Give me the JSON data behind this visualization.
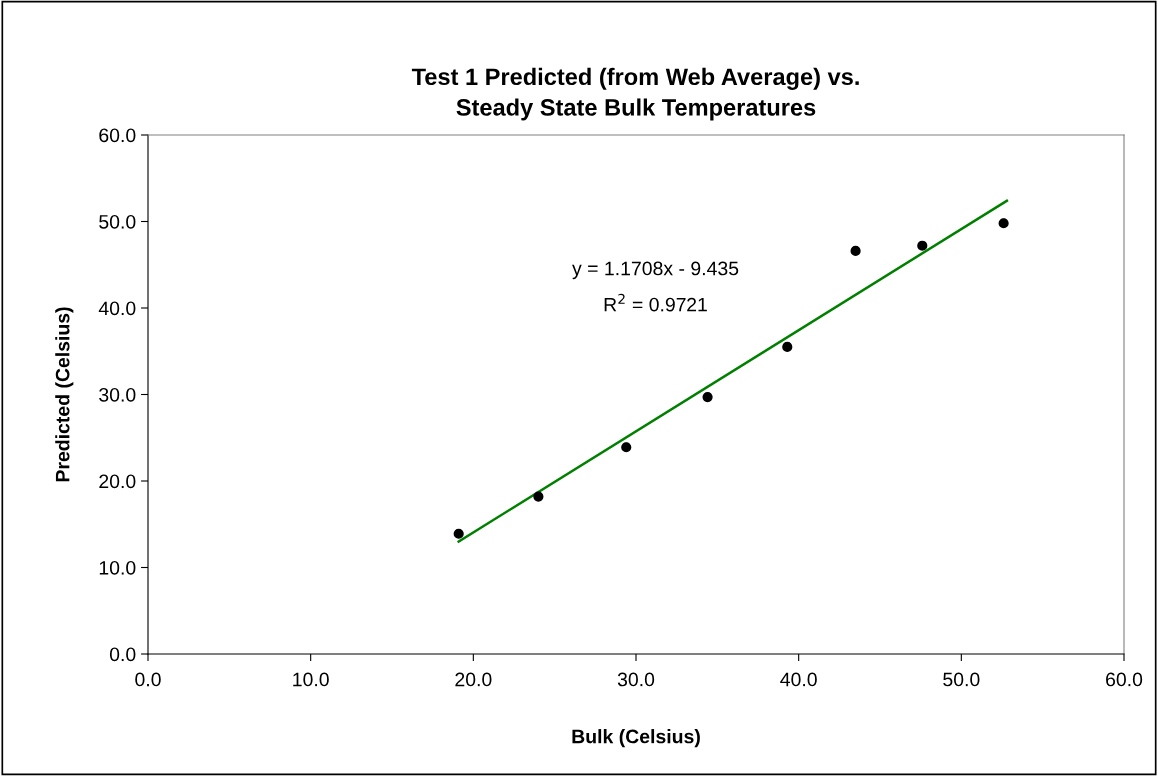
{
  "chart_data": {
    "type": "scatter",
    "title": "Test 1 Predicted (from Web Average) vs.\nSteady State Bulk Temperatures",
    "xlabel": "Bulk (Celsius)",
    "ylabel": "Predicted (Celsius)",
    "annotations": [
      "y = 1.1708x - 9.435",
      "R$^{2}$ = 0.9721"
    ],
    "series": [
      {
        "color": "#000000",
        "marker": "circle",
        "x": [
          19.1,
          24.0,
          29.4,
          34.4,
          39.3,
          43.5,
          47.6,
          52.6
        ],
        "values": [
          13.9,
          18.2,
          23.9,
          29.7,
          35.5,
          46.6,
          47.2,
          49.8
        ]
      },
      {
        "type": "line",
        "color": "#008000",
        "marker": "none",
        "line_style": "solid",
        "x": [
          19.1,
          52.8
        ],
        "values": [
          13.0,
          52.4
        ]
      }
    ],
    "xlim": [
      0,
      60
    ],
    "ylim": [
      0,
      60
    ],
    "xticks": [
      {
        "value": 0,
        "label": "0.0"
      },
      {
        "value": 10,
        "label": "10.0"
      },
      {
        "value": 20,
        "label": "20.0"
      },
      {
        "value": 30,
        "label": "30.0"
      },
      {
        "value": 40,
        "label": "40.0"
      },
      {
        "value": 50,
        "label": "50.0"
      },
      {
        "value": 60,
        "label": "60.0"
      }
    ],
    "yticks": [
      {
        "value": 0,
        "label": "0.0"
      },
      {
        "value": 10,
        "label": "10.0"
      },
      {
        "value": 20,
        "label": "20.0"
      },
      {
        "value": 30,
        "label": "30.0"
      },
      {
        "value": 40,
        "label": "40.0"
      },
      {
        "value": 50,
        "label": "50.0"
      },
      {
        "value": 60,
        "label": "60.0"
      }
    ],
    "grid": false,
    "legend": false
  }
}
